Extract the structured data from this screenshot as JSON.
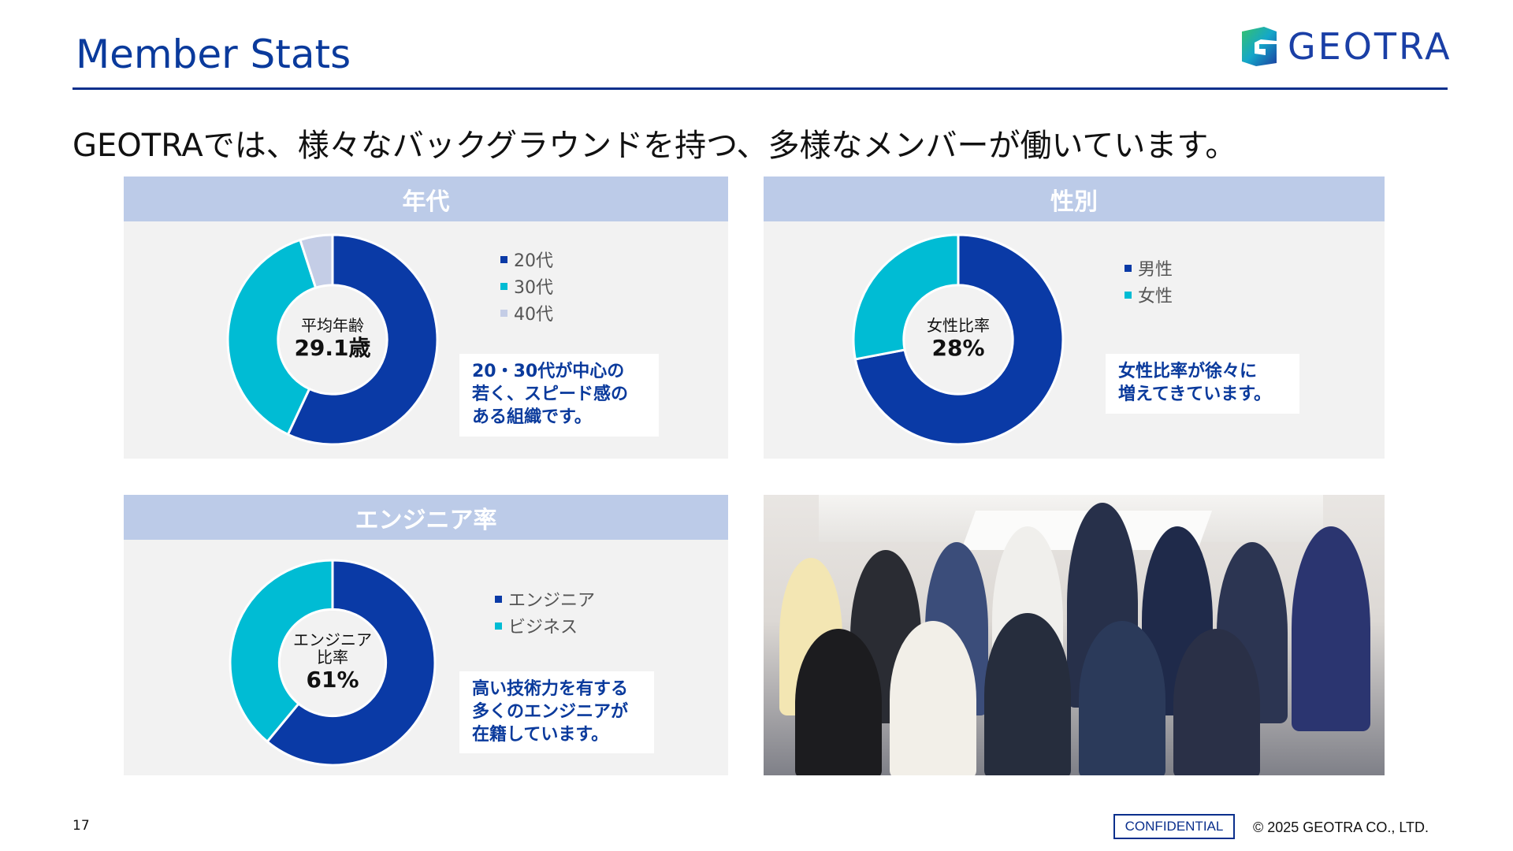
{
  "header": {
    "title": "Member Stats",
    "logo_text": "GEOTRA",
    "subtitle": "GEOTRAでは、様々なバックグラウンドを持つ、多様なメンバーが働いています。"
  },
  "colors": {
    "dark_blue": "#0a3aa6",
    "cyan": "#00bcd4",
    "light_blue": "#c4cde6",
    "header_bg": "#bccbe8"
  },
  "panels": {
    "age": {
      "title": "年代",
      "center_label": "平均年齢",
      "center_value": "29.1歳",
      "legend": [
        "20代",
        "30代",
        "40代"
      ],
      "note_lines": [
        "20・30代が中心の",
        "若く、スピード感の",
        "ある組織です。"
      ]
    },
    "gender": {
      "title": "性別",
      "center_label": "女性比率",
      "center_value": "28%",
      "legend": [
        "男性",
        "女性"
      ],
      "note_lines": [
        "女性比率が徐々に",
        "増えてきています。"
      ]
    },
    "engineer": {
      "title": "エンジニア率",
      "center_label_1": "エンジニア",
      "center_label_2": "比率",
      "center_value": "61%",
      "legend": [
        "エンジニア",
        "ビジネス"
      ],
      "note_lines": [
        "高い技術力を有する",
        "多くのエンジニアが",
        "在籍しています。"
      ]
    }
  },
  "chart_data": [
    {
      "type": "pie",
      "labels": [
        "20代",
        "30代",
        "40代"
      ],
      "values": [
        57,
        38,
        5
      ],
      "colors": [
        "#0a3aa6",
        "#00bcd4",
        "#c4cde6"
      ]
    },
    {
      "type": "pie",
      "labels": [
        "男性",
        "女性"
      ],
      "values": [
        72,
        28
      ],
      "colors": [
        "#0a3aa6",
        "#00bcd4"
      ]
    },
    {
      "type": "pie",
      "labels": [
        "エンジニア",
        "ビジネス"
      ],
      "values": [
        61,
        39
      ],
      "colors": [
        "#0a3aa6",
        "#00bcd4"
      ]
    }
  ],
  "footer": {
    "page_number": "17",
    "confidential": "CONFIDENTIAL",
    "copyright": "© 2025 GEOTRA CO., LTD."
  }
}
